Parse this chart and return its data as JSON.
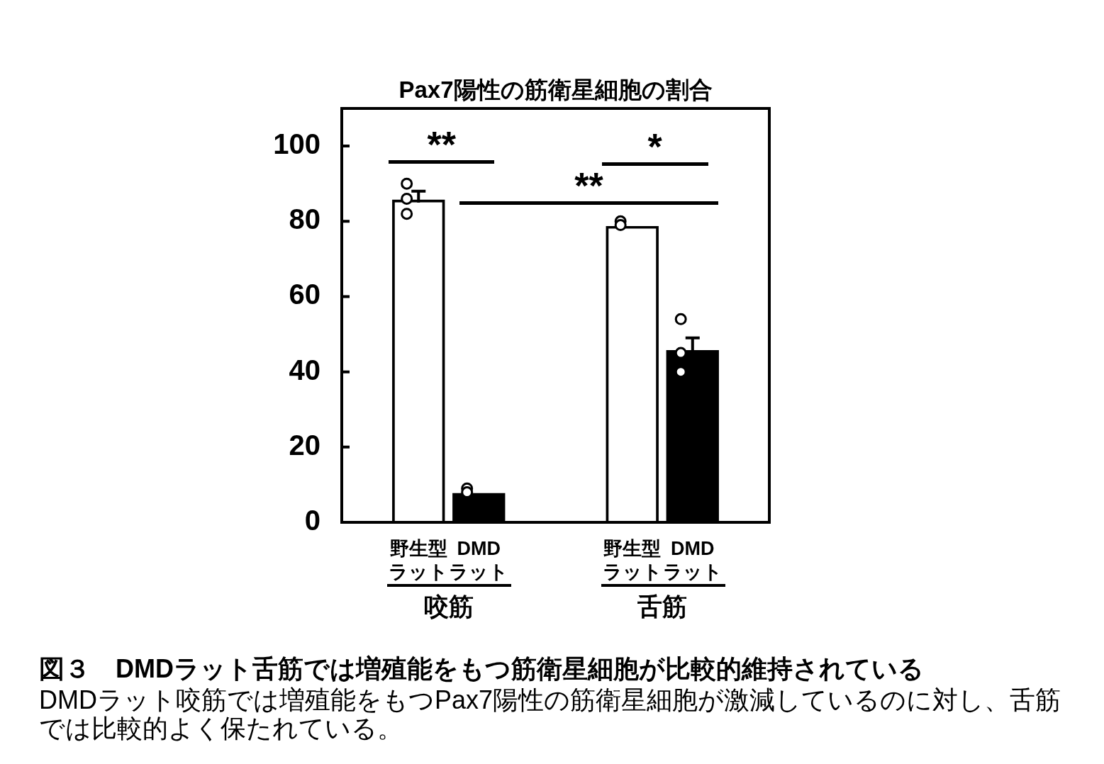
{
  "chart_data": {
    "type": "bar",
    "title": "Pax7陽性の筋衛星細胞の割合",
    "categories": [
      "咬筋",
      "舌筋"
    ],
    "series": [
      {
        "name": "野生型ラット",
        "color": "#ffffff",
        "values": [
          85,
          78
        ],
        "errors": [
          [
            85,
            88
          ],
          null
        ]
      },
      {
        "name": "DMDラット",
        "color": "#000000",
        "values": [
          7,
          45
        ],
        "errors": [
          null,
          [
            45,
            49
          ]
        ]
      },
      {
        "type": "scatter",
        "color": "#ffffff",
        "marker": "circle",
        "x": [
          "咬筋",
          "咬筋",
          "咬筋",
          "舌筋",
          "舌筋"
        ],
        "values": [
          90,
          86,
          82,
          80,
          79
        ]
      },
      {
        "type": "scatter",
        "color": "#ffffff",
        "marker": "circle",
        "x": [
          "咬筋",
          "咬筋",
          "舌筋",
          "舌筋",
          "舌筋"
        ],
        "values": [
          9,
          8,
          54,
          45,
          40
        ]
      }
    ],
    "ylim": [
      0,
      110
    ],
    "yticks": [
      0,
      20,
      40,
      60,
      80,
      100
    ],
    "grid": false,
    "legend": false,
    "annotations": [
      "**",
      "*",
      "**",
      "図３　DMDラット舌筋では増殖能をもつ筋衛星細胞が比較的維持されている",
      "DMDラット咬筋では増殖能をもつPax7陽性の筋衛星細胞が激減しているのに対し、舌筋では比較的よく保たれている。"
    ]
  }
}
